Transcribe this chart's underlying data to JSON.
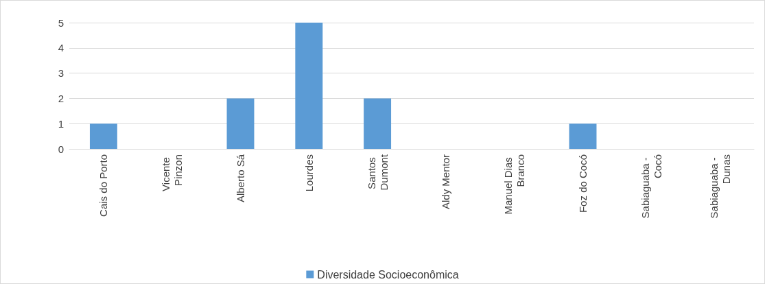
{
  "chart_data": {
    "type": "bar",
    "categories": [
      "Cais do Porto",
      "Vicente Pinzon",
      "Alberto Sá",
      "Lourdes",
      "Santos Dumont",
      "Aldy Mentor",
      "Manuel Dias Branco",
      "Foz do Cocó",
      "Sabiaguaba - Cocó",
      "Sabiaguaba - Dunas"
    ],
    "series": [
      {
        "name": "Diversidade Socioeconômica",
        "color": "#5b9bd5",
        "values": [
          1,
          0,
          2,
          5,
          2,
          0,
          0,
          1,
          0,
          0
        ]
      }
    ],
    "ylim": [
      0,
      5
    ],
    "yticks": [
      0,
      1,
      2,
      3,
      4,
      5
    ],
    "grid": "y",
    "legend": "bottom"
  }
}
